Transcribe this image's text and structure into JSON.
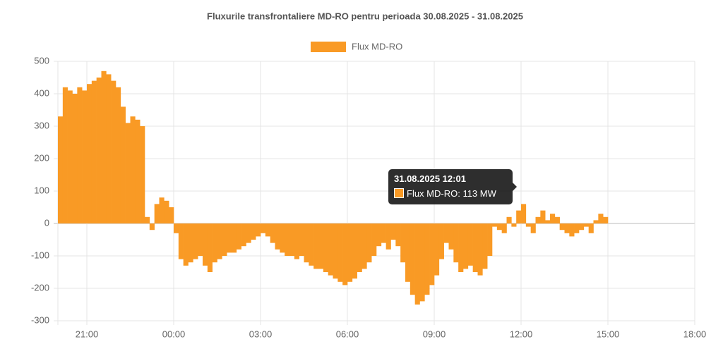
{
  "chart_data": {
    "type": "bar",
    "title": "Fluxurile transfrontaliere MD-RO pentru perioada 30.08.2025 - 31.08.2025",
    "x": [
      "30.08.2025 20:00",
      "30.08.2025 20:10",
      "30.08.2025 20:20",
      "30.08.2025 20:30",
      "30.08.2025 20:40",
      "30.08.2025 20:50",
      "30.08.2025 21:00",
      "30.08.2025 21:10",
      "30.08.2025 21:20",
      "30.08.2025 21:30",
      "30.08.2025 21:40",
      "30.08.2025 21:50",
      "30.08.2025 22:00",
      "30.08.2025 22:10",
      "30.08.2025 22:20",
      "30.08.2025 22:30",
      "30.08.2025 22:40",
      "30.08.2025 22:50",
      "30.08.2025 23:00",
      "30.08.2025 23:10",
      "30.08.2025 23:20",
      "30.08.2025 23:30",
      "30.08.2025 23:40",
      "30.08.2025 23:50",
      "31.08.2025 00:00",
      "31.08.2025 00:10",
      "31.08.2025 00:20",
      "31.08.2025 00:30",
      "31.08.2025 00:40",
      "31.08.2025 00:50",
      "31.08.2025 01:00",
      "31.08.2025 01:10",
      "31.08.2025 01:20",
      "31.08.2025 01:30",
      "31.08.2025 01:40",
      "31.08.2025 01:50",
      "31.08.2025 02:00",
      "31.08.2025 02:10",
      "31.08.2025 02:20",
      "31.08.2025 02:30",
      "31.08.2025 02:40",
      "31.08.2025 02:50",
      "31.08.2025 03:00",
      "31.08.2025 03:10",
      "31.08.2025 03:20",
      "31.08.2025 03:30",
      "31.08.2025 03:40",
      "31.08.2025 03:50",
      "31.08.2025 04:00",
      "31.08.2025 04:10",
      "31.08.2025 04:20",
      "31.08.2025 04:30",
      "31.08.2025 04:40",
      "31.08.2025 04:50",
      "31.08.2025 05:00",
      "31.08.2025 05:10",
      "31.08.2025 05:20",
      "31.08.2025 05:30",
      "31.08.2025 05:40",
      "31.08.2025 05:50",
      "31.08.2025 06:00",
      "31.08.2025 06:10",
      "31.08.2025 06:20",
      "31.08.2025 06:30",
      "31.08.2025 06:40",
      "31.08.2025 06:50",
      "31.08.2025 07:00",
      "31.08.2025 07:10",
      "31.08.2025 07:20",
      "31.08.2025 07:30",
      "31.08.2025 07:40",
      "31.08.2025 07:50",
      "31.08.2025 08:00",
      "31.08.2025 08:10",
      "31.08.2025 08:20",
      "31.08.2025 08:30",
      "31.08.2025 08:40",
      "31.08.2025 08:50",
      "31.08.2025 09:00",
      "31.08.2025 09:10",
      "31.08.2025 09:20",
      "31.08.2025 09:30",
      "31.08.2025 09:40",
      "31.08.2025 09:50",
      "31.08.2025 10:00",
      "31.08.2025 10:10",
      "31.08.2025 10:20",
      "31.08.2025 10:30",
      "31.08.2025 10:40",
      "31.08.2025 10:50",
      "31.08.2025 11:00",
      "31.08.2025 11:10",
      "31.08.2025 11:20",
      "31.08.2025 11:30",
      "31.08.2025 11:40",
      "31.08.2025 11:50",
      "31.08.2025 12:00",
      "31.08.2025 12:10",
      "31.08.2025 12:20",
      "31.08.2025 12:30",
      "31.08.2025 12:40",
      "31.08.2025 12:50",
      "31.08.2025 13:00",
      "31.08.2025 13:10",
      "31.08.2025 13:20",
      "31.08.2025 13:30",
      "31.08.2025 13:40",
      "31.08.2025 13:50",
      "31.08.2025 14:00",
      "31.08.2025 14:10",
      "31.08.2025 14:20",
      "31.08.2025 14:30",
      "31.08.2025 14:40",
      "31.08.2025 14:50"
    ],
    "series": [
      {
        "name": "Flux MD-RO",
        "color": "#f99a25",
        "values": [
          330,
          420,
          410,
          400,
          420,
          410,
          430,
          440,
          450,
          470,
          460,
          440,
          420,
          360,
          310,
          330,
          320,
          300,
          20,
          -20,
          60,
          80,
          70,
          50,
          -30,
          -110,
          -130,
          -120,
          -110,
          -100,
          -130,
          -150,
          -120,
          -110,
          -100,
          -90,
          -90,
          -80,
          -70,
          -60,
          -50,
          -40,
          -30,
          -40,
          -60,
          -80,
          -90,
          -100,
          -100,
          -110,
          -100,
          -120,
          -130,
          -140,
          -140,
          -150,
          -160,
          -170,
          -180,
          -190,
          -180,
          -170,
          -150,
          -140,
          -120,
          -100,
          -70,
          -60,
          -80,
          -50,
          -70,
          -120,
          -180,
          -220,
          -250,
          -240,
          -220,
          -190,
          -160,
          -110,
          -60,
          -80,
          -120,
          -150,
          -140,
          -130,
          -150,
          -160,
          -140,
          -100,
          -10,
          -20,
          -30,
          20,
          -10,
          40,
          60,
          -10,
          -30,
          20,
          40,
          10,
          30,
          20,
          -20,
          -30,
          -40,
          -30,
          -20,
          -10,
          -30,
          10,
          30,
          20
        ]
      }
    ],
    "xlim": [
      "30.08.2025 20:00",
      "31.08.2025 18:00"
    ],
    "xticks": [
      {
        "value": "30.08.2025 21:00",
        "label": "21:00"
      },
      {
        "value": "31.08.2025 00:00",
        "label": "00:00"
      },
      {
        "value": "31.08.2025 03:00",
        "label": "03:00"
      },
      {
        "value": "31.08.2025 06:00",
        "label": "06:00"
      },
      {
        "value": "31.08.2025 09:00",
        "label": "09:00"
      },
      {
        "value": "31.08.2025 12:00",
        "label": "12:00"
      },
      {
        "value": "31.08.2025 15:00",
        "label": "15:00"
      },
      {
        "value": "31.08.2025 18:00",
        "label": "18:00"
      }
    ],
    "ylim": [
      -300,
      500
    ],
    "yticks": [
      -300,
      -200,
      -100,
      0,
      100,
      200,
      300,
      400,
      500
    ],
    "grid": true,
    "legend": "top",
    "tooltip": {
      "title": "31.08.2025 12:01",
      "label": "Flux MD-RO: 113 MW"
    }
  }
}
